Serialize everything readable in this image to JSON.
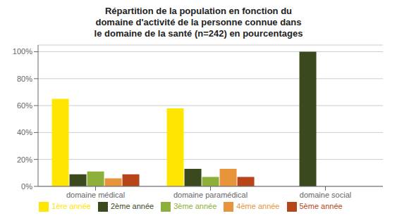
{
  "chart_data": {
    "type": "bar",
    "title": "Répartition de la population en fonction du\ndomaine d'activité de la personne connue dans\nle domaine de la santé (n=242) en pourcentages",
    "categories": [
      "domaine médical",
      "domaine paramédical",
      "domaine social"
    ],
    "series": [
      {
        "name": "1ère année",
        "color": "#FFE600",
        "values": [
          65,
          58,
          0
        ]
      },
      {
        "name": "2ème année",
        "color": "#3B4A1E",
        "values": [
          9,
          13,
          100
        ]
      },
      {
        "name": "3ème année",
        "color": "#8DB03A",
        "values": [
          11,
          7,
          0
        ]
      },
      {
        "name": "4ème année",
        "color": "#E8943A",
        "values": [
          6,
          13,
          0
        ]
      },
      {
        "name": "5ème année",
        "color": "#B8451A",
        "values": [
          9,
          7,
          0
        ]
      }
    ],
    "ylim": [
      0,
      105
    ],
    "yticks": [
      {
        "value": 0,
        "label": "0%"
      },
      {
        "value": 20,
        "label": "20%"
      },
      {
        "value": 40,
        "label": "40%"
      },
      {
        "value": 60,
        "label": "60%"
      },
      {
        "value": 80,
        "label": "80%"
      },
      {
        "value": 100,
        "label": "100%"
      }
    ],
    "grid": true,
    "legend": "bottom"
  }
}
